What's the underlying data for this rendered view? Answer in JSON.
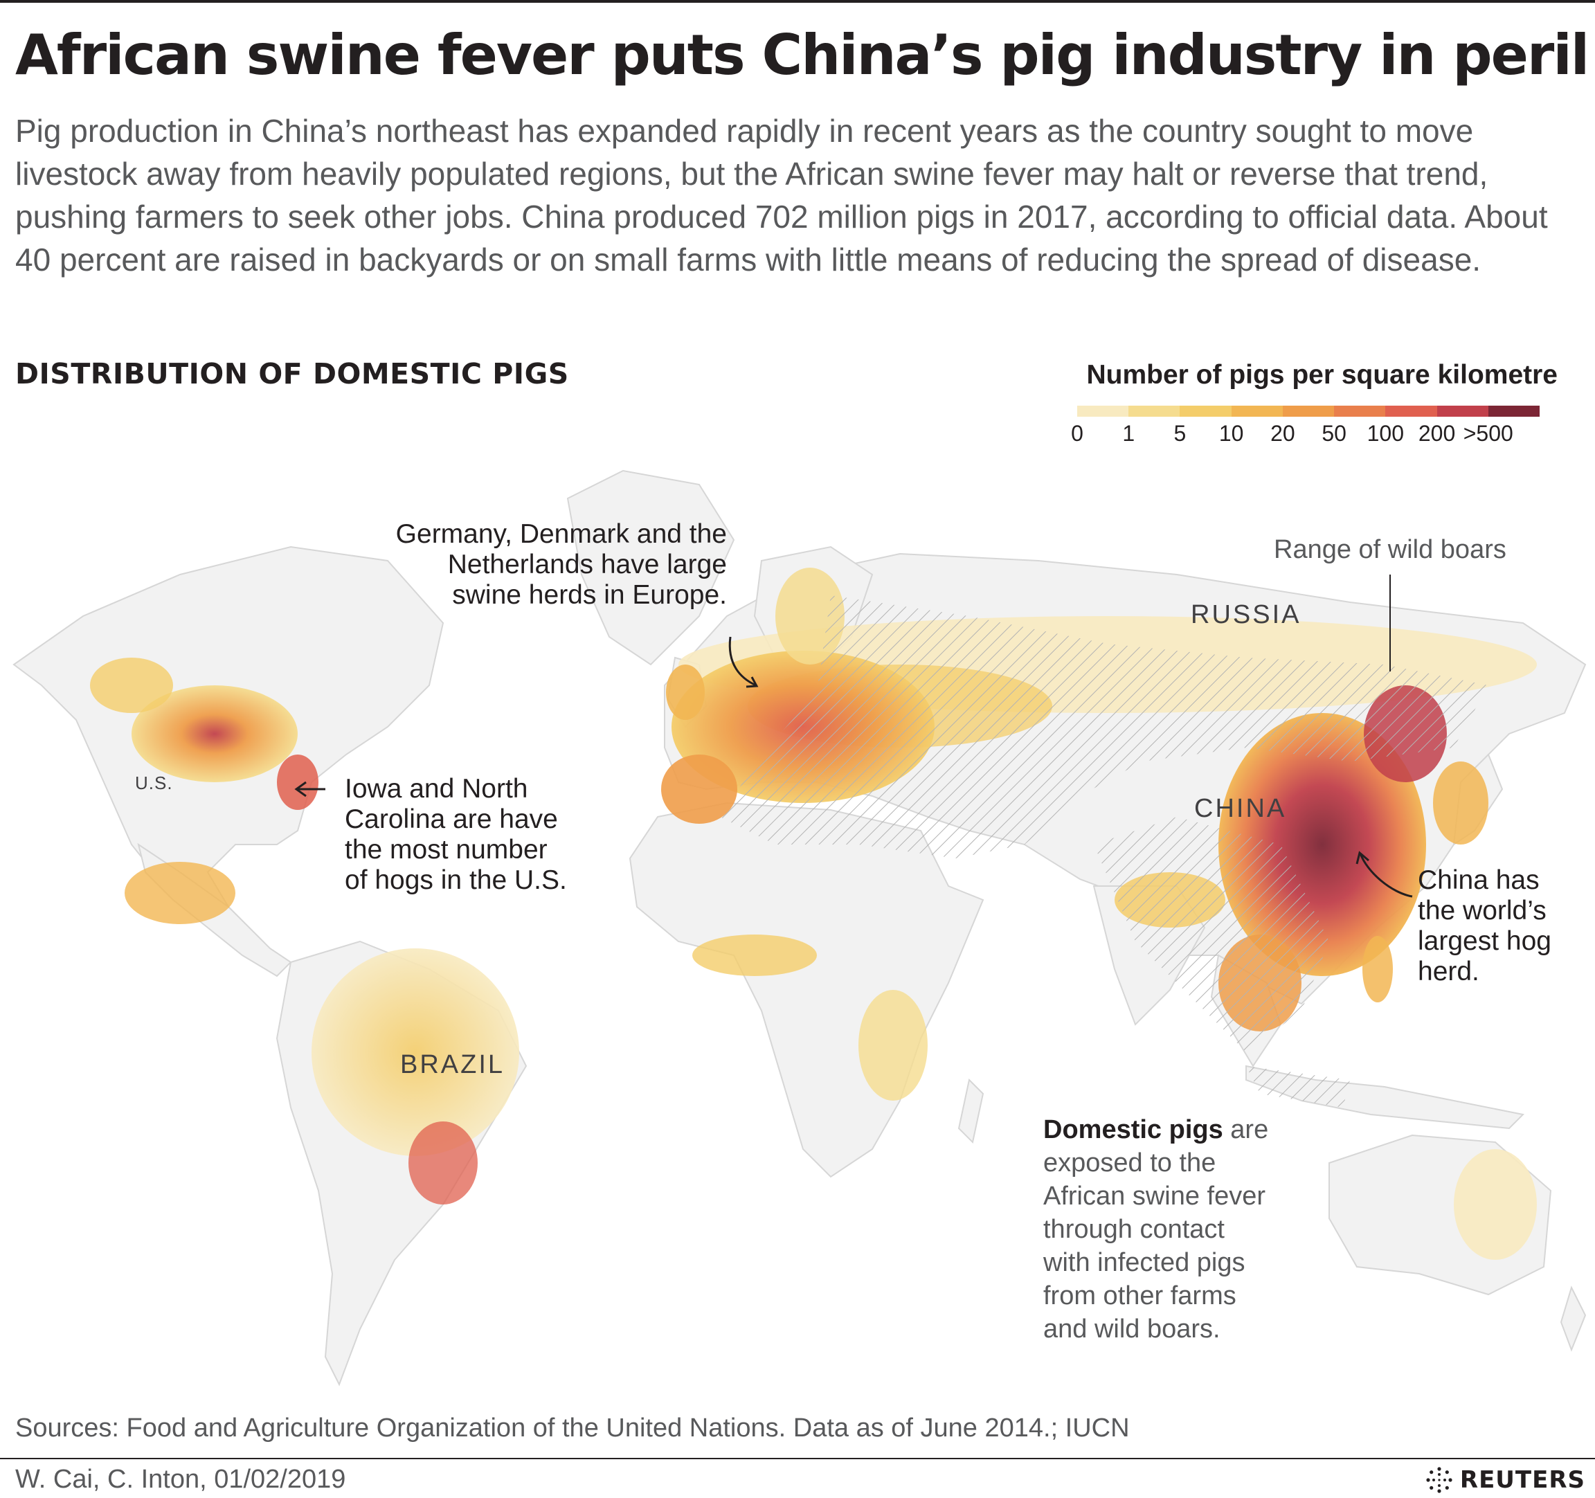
{
  "title": "African swine fever puts China’s pig industry in peril",
  "subtitle": "Pig production in China’s northeast has expanded rapidly in recent years as the country sought to move livestock away from heavily populated regions, but the African swine fever may halt or reverse that trend, pushing farmers to seek other jobs. China produced 702 million pigs in 2017, according to official data. About 40 percent are raised in backyards or on small farms with little means of reducing the spread of disease.",
  "section_title": "DISTRIBUTION OF DOMESTIC PIGS",
  "legend": {
    "title": "Number of pigs per square kilometre",
    "ticks": [
      "0",
      "1",
      "5",
      "10",
      "20",
      "50",
      "100",
      "200",
      ">500"
    ],
    "colors": [
      "#f8eac0",
      "#f5dc8f",
      "#f4cd6a",
      "#f2b653",
      "#ef9d4a",
      "#e97f4c",
      "#e0604f",
      "#c1404b",
      "#7c2635"
    ]
  },
  "map": {
    "ocean_color": "#ffffff",
    "land_color": "#f2f2f2",
    "border_color": "#d9d9d9",
    "hatch_color": "#b5b5b5",
    "labels": {
      "us": "U.S.",
      "russia": "RUSSIA",
      "china": "CHINA",
      "brazil": "BRAZIL"
    }
  },
  "annotations": {
    "europe": [
      "Germany, Denmark and the",
      "Netherlands have large",
      "swine herds in Europe."
    ],
    "us": [
      "Iowa and North",
      "Carolina are have",
      "the most number",
      "of hogs in the U.S."
    ],
    "china": [
      "China has",
      "the world’s",
      "largest hog",
      "herd."
    ],
    "wild_boars": "Range of wild boars",
    "domestic": {
      "bold": "Domestic pigs",
      "first_line_rest": " are",
      "lines": [
        "exposed to the",
        "African swine fever",
        "through contact",
        "with infected pigs",
        "from other farms",
        "and wild boars."
      ]
    }
  },
  "source": "Sources: Food and Agriculture Organization of the United Nations. Data as of June 2014.; IUCN",
  "credit": "W. Cai, C. Inton, 01/02/2019",
  "logo": "REUTERS"
}
